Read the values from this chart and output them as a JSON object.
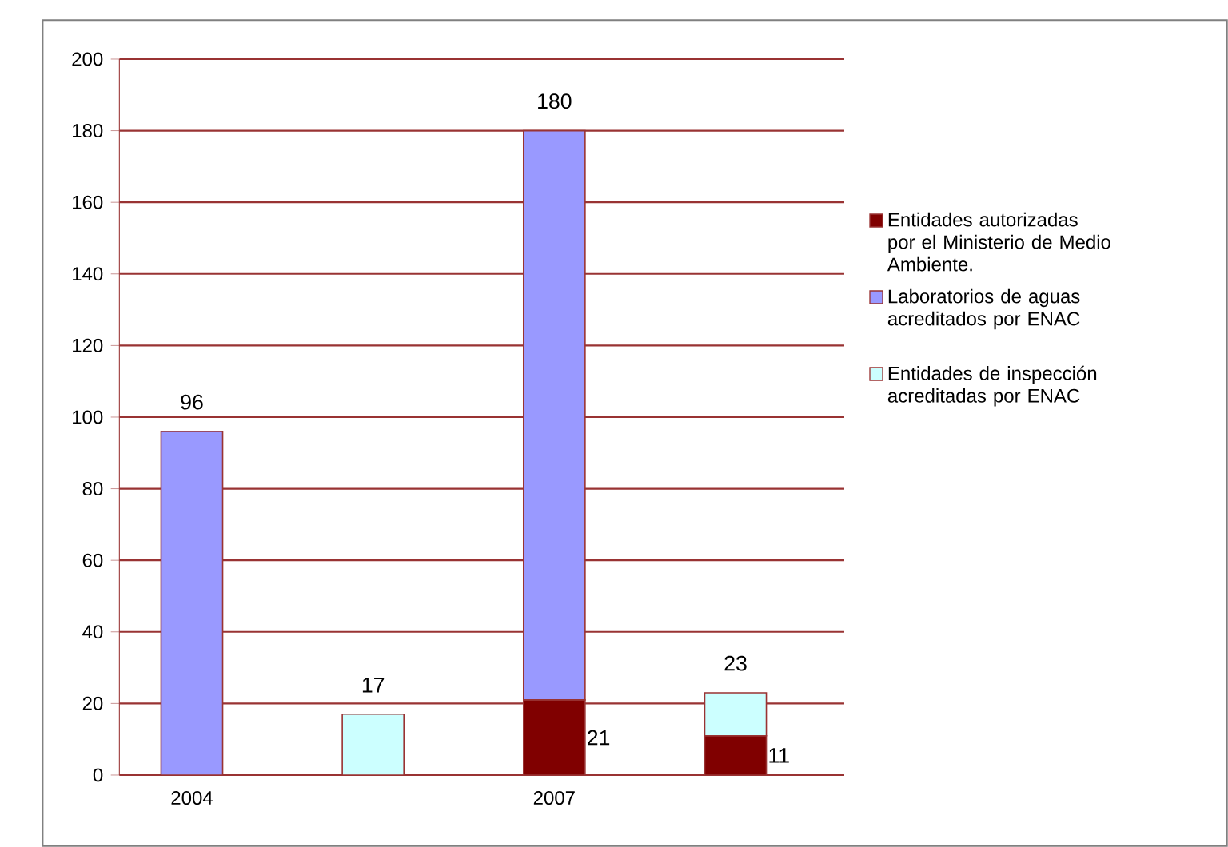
{
  "chart_data": {
    "type": "bar",
    "stacked": true,
    "categories": [
      "2004",
      null,
      "2007",
      null
    ],
    "series": [
      {
        "name": "Entidades autorizadas por el Ministerio de Medio Ambiente.",
        "color": "#800000",
        "values": [
          null,
          null,
          21,
          11
        ],
        "value_labels": [
          null,
          null,
          "21",
          "11"
        ]
      },
      {
        "name": "Laboratorios de aguas acreditados por ENAC",
        "color": "#9999ff",
        "values": [
          96,
          null,
          159,
          null
        ]
      },
      {
        "name": "Entidades de inspección acreditadas por ENAC",
        "color": "#ccffff",
        "values": [
          null,
          17,
          null,
          12
        ]
      }
    ],
    "totals": [
      "96",
      "17",
      "180",
      "23"
    ],
    "ylim": [
      0,
      200
    ],
    "yticks": [
      0,
      20,
      40,
      60,
      80,
      100,
      120,
      140,
      160,
      180,
      200
    ],
    "grid": "y",
    "legend": "right"
  }
}
